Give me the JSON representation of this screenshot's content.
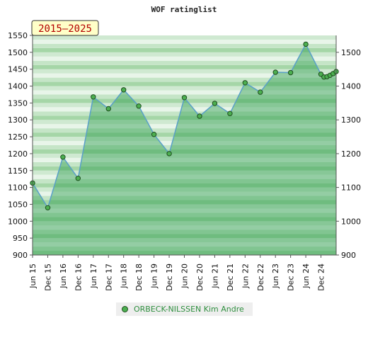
{
  "chart_data": {
    "type": "area",
    "title": "WOF ratinglist",
    "badge": "2015–2025",
    "x": [
      "Jun 15",
      "Dec 15",
      "Jun 16",
      "Dec 16",
      "Jun 17",
      "Dec 17",
      "Jun 18",
      "Dec 18",
      "Jun 19",
      "Dec 19",
      "Jun 20",
      "Dec 20",
      "Jun 21",
      "Dec 21",
      "Jun 22",
      "Dec 22",
      "Jun 23",
      "Dec 23",
      "Jun 24",
      "Dec 24",
      "Dec 24",
      "Dec 24",
      "Dec 24",
      "Dec 24",
      "Dec 24"
    ],
    "x_tick_labels": [
      "Jun 15",
      "Dec 15",
      "Jun 16",
      "Dec 16",
      "Jun 17",
      "Dec 17",
      "Jun 18",
      "Dec 18",
      "Jun 19",
      "Dec 19",
      "Jun 20",
      "Dec 20",
      "Jun 21",
      "Dec 21",
      "Jun 22",
      "Dec 22",
      "Jun 23",
      "Dec 23",
      "Jun 24",
      "Dec 24"
    ],
    "series": [
      {
        "name": "ORBECK-NILSSEN Kim Andre",
        "t": [
          0,
          1,
          2,
          3,
          4,
          5,
          6,
          7,
          8,
          9,
          10,
          11,
          12,
          13,
          14,
          15,
          16,
          17,
          18,
          19,
          19.2,
          19.4,
          19.6,
          19.8,
          20
        ],
        "values": [
          1113,
          1040,
          1190,
          1127,
          1368,
          1333,
          1389,
          1341,
          1257,
          1200,
          1366,
          1311,
          1349,
          1319,
          1410,
          1382,
          1441,
          1440,
          1524,
          1435,
          1427,
          1428,
          1432,
          1437,
          1443
        ]
      }
    ],
    "ylim_left": [
      900,
      1550
    ],
    "yticks_left": [
      900,
      950,
      1000,
      1050,
      1100,
      1150,
      1200,
      1250,
      1300,
      1350,
      1400,
      1450,
      1500,
      1550
    ],
    "ylim_right": [
      900,
      1550
    ],
    "yticks_right": [
      900,
      1000,
      1100,
      1200,
      1300,
      1400,
      1500
    ],
    "grid": true,
    "legend": "bottom-center",
    "colors": {
      "line": "#5aa0c8",
      "marker_fill": "#4caf50",
      "marker_stroke": "#1e4d1e",
      "area_fill": "#2e9e4f",
      "band_light": "#e8f5e9",
      "band_dark": "#a5d6a7",
      "badge_bg": "#ffffc8",
      "badge_text": "#b40000",
      "legend_text": "#2f8f3f"
    }
  }
}
